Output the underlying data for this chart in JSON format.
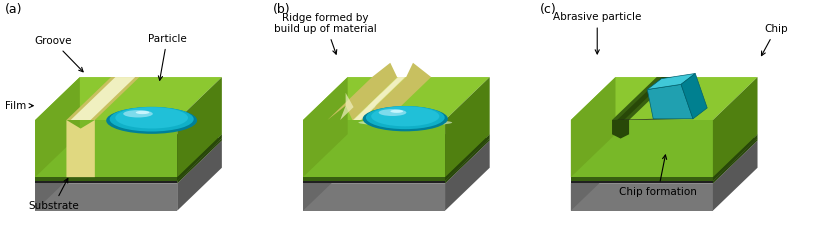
{
  "fig_width": 8.13,
  "fig_height": 2.4,
  "dpi": 100,
  "bg_color": "#ffffff",
  "panel_labels": [
    "(a)",
    "(b)",
    "(c)"
  ],
  "colors": {
    "top_green_light": "#a8d840",
    "top_green": "#8cc830",
    "top_green_dark": "#70a820",
    "side_green_front": "#78b828",
    "side_green_dark": "#508010",
    "dark_band": "#386010",
    "darker_band": "#284808",
    "sub_top": "#a8a8a8",
    "sub_front": "#787878",
    "sub_side": "#585858",
    "sub_dark_band": "#383838",
    "sub_dark_front": "#202020",
    "groove_center": "#f0f0c0",
    "groove_mid": "#e0d880",
    "groove_edge": "#c8c060",
    "particle_teal": "#10b0c8",
    "particle_light": "#90e0f0",
    "particle_dark": "#008098",
    "chip_top": "#40c8d8",
    "chip_front": "#20a0b0",
    "chip_side": "#008090",
    "chip_dark": "#006070"
  }
}
